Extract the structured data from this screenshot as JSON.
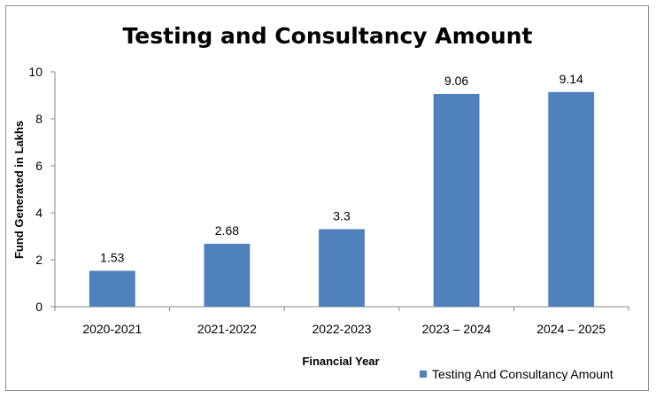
{
  "chart_data": {
    "type": "bar",
    "title": "Testing and Consultancy Amount",
    "xlabel": "Financial Year",
    "ylabel": "Fund Generated in Lakhs",
    "categories": [
      "2020-2021",
      "2021-2022",
      "2022-2023",
      "2023 – 2024",
      "2024 – 2025"
    ],
    "series": [
      {
        "name": "Testing And Consultancy Amount",
        "values": [
          1.53,
          2.68,
          3.3,
          9.06,
          9.14
        ],
        "color": "#4f81bd"
      }
    ],
    "data_labels": [
      "1.53",
      "2.68",
      "3.3",
      "9.06",
      "9.14"
    ],
    "ylim": [
      0,
      10
    ],
    "yticks": [
      0,
      2,
      4,
      6,
      8,
      10
    ],
    "grid": false,
    "legend": "bottom-right"
  }
}
